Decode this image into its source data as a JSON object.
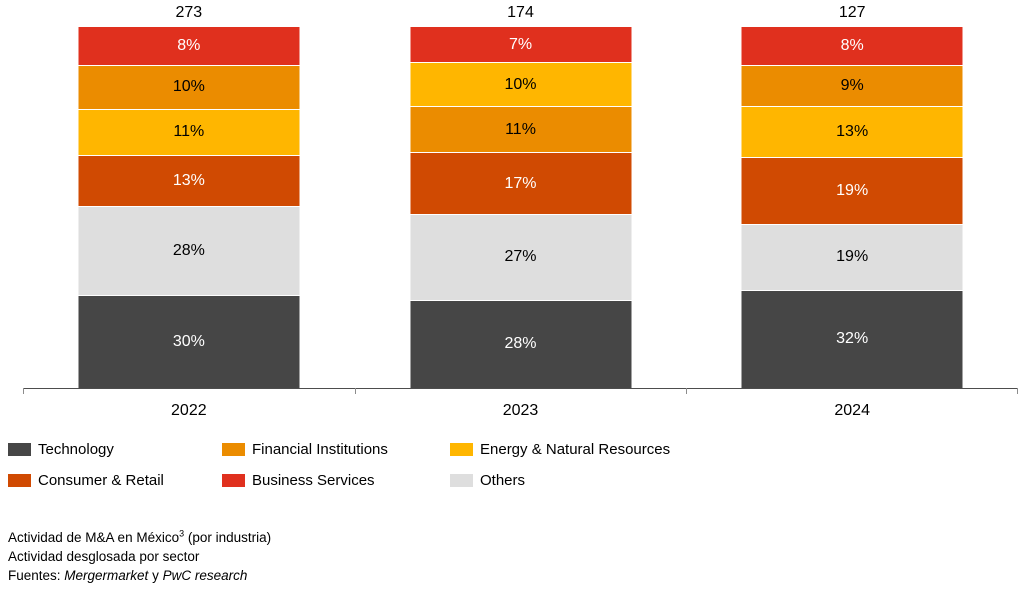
{
  "chart_data": {
    "type": "bar",
    "variant": "100-percent-stacked-column",
    "title": "Actividad de M&A en México³ (por industria)",
    "subtitle": "Actividad desglosada por sector",
    "source_line": "Fuentes: Mergermarket y PwC research",
    "categories": [
      "2022",
      "2023",
      "2024"
    ],
    "totals": [
      273,
      174,
      127
    ],
    "unit": "%",
    "ylim": [
      0,
      100
    ],
    "grid": false,
    "legend_position": "bottom",
    "series": [
      {
        "name": "Technology",
        "color": "#464646",
        "values": [
          30,
          28,
          32
        ]
      },
      {
        "name": "Others",
        "color": "#DEDEDE",
        "values": [
          28,
          27,
          19
        ]
      },
      {
        "name": "Consumer & Retail",
        "color": "#D04A02",
        "values": [
          13,
          17,
          19
        ]
      },
      {
        "name": "Energy & Natural Resources",
        "color": "#FFB600",
        "values": [
          11,
          10,
          13
        ]
      },
      {
        "name": "Financial Institutions",
        "color": "#EB8C00",
        "values": [
          10,
          11,
          9
        ]
      },
      {
        "name": "Business Services",
        "color": "#E0301E",
        "values": [
          8,
          7,
          8
        ]
      }
    ],
    "stacking_note": "segments sorted per column, smallest value on top"
  },
  "bars": [
    {
      "year": "2022",
      "total": "273",
      "segments": [
        {
          "sector": "Business Services",
          "label": "8%",
          "value": 8,
          "color": "#E0301E",
          "text": "#FFFFFF"
        },
        {
          "sector": "Financial Institutions",
          "label": "10%",
          "value": 10,
          "color": "#EB8C00",
          "text": "#000000"
        },
        {
          "sector": "Energy & Natural Resources",
          "label": "11%",
          "value": 11,
          "color": "#FFB600",
          "text": "#000000"
        },
        {
          "sector": "Consumer & Retail",
          "label": "13%",
          "value": 13,
          "color": "#D04A02",
          "text": "#FFFFFF"
        },
        {
          "sector": "Others",
          "label": "28%",
          "value": 28,
          "color": "#DEDEDE",
          "text": "#000000"
        },
        {
          "sector": "Technology",
          "label": "30%",
          "value": 30,
          "color": "#464646",
          "text": "#FFFFFF"
        }
      ]
    },
    {
      "year": "2023",
      "total": "174",
      "segments": [
        {
          "sector": "Business Services",
          "label": "7%",
          "value": 7,
          "color": "#E0301E",
          "text": "#FFFFFF"
        },
        {
          "sector": "Energy & Natural Resources",
          "label": "10%",
          "value": 10,
          "color": "#FFB600",
          "text": "#000000"
        },
        {
          "sector": "Financial Institutions",
          "label": "11%",
          "value": 11,
          "color": "#EB8C00",
          "text": "#000000"
        },
        {
          "sector": "Consumer & Retail",
          "label": "17%",
          "value": 17,
          "color": "#D04A02",
          "text": "#FFFFFF"
        },
        {
          "sector": "Others",
          "label": "27%",
          "value": 27,
          "color": "#DEDEDE",
          "text": "#000000"
        },
        {
          "sector": "Technology",
          "label": "28%",
          "value": 28,
          "color": "#464646",
          "text": "#FFFFFF"
        }
      ]
    },
    {
      "year": "2024",
      "total": "127",
      "segments": [
        {
          "sector": "Business Services",
          "label": "8%",
          "value": 8,
          "color": "#E0301E",
          "text": "#FFFFFF"
        },
        {
          "sector": "Financial Institutions",
          "label": "9%",
          "value": 9,
          "color": "#EB8C00",
          "text": "#000000"
        },
        {
          "sector": "Energy & Natural Resources",
          "label": "13%",
          "value": 13,
          "color": "#FFB600",
          "text": "#000000"
        },
        {
          "sector": "Consumer & Retail",
          "label": "19%",
          "value": 19,
          "color": "#D04A02",
          "text": "#FFFFFF"
        },
        {
          "sector": "Others",
          "label": "19%",
          "value": 19,
          "color": "#DEDEDE",
          "text": "#000000"
        },
        {
          "sector": "Technology",
          "label": "32%",
          "value": 32,
          "color": "#464646",
          "text": "#FFFFFF"
        }
      ]
    }
  ],
  "legend": {
    "rows": [
      [
        {
          "label": "Technology",
          "color": "#464646"
        },
        {
          "label": "Financial Institutions",
          "color": "#EB8C00"
        },
        {
          "label": "Energy & Natural Resources",
          "color": "#FFB600"
        }
      ],
      [
        {
          "label": "Consumer & Retail",
          "color": "#D04A02"
        },
        {
          "label": "Business Services",
          "color": "#E0301E"
        },
        {
          "label": "Others",
          "color": "#DEDEDE"
        }
      ]
    ]
  },
  "footer": {
    "title_prefix": "Actividad de M&A en México",
    "title_sup": "3",
    "title_suffix": " (por industria)",
    "subtitle": "Actividad desglosada por sector",
    "sources_prefix": "Fuentes: ",
    "source1": "Mergermarket",
    "sources_connector": " y ",
    "source2": "PwC research"
  }
}
